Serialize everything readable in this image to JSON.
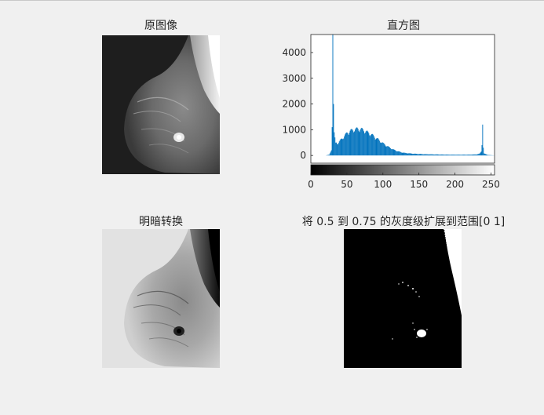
{
  "figure": {
    "subplots": [
      {
        "title": "原图像"
      },
      {
        "title": "直方图"
      },
      {
        "title": "明暗转换"
      },
      {
        "title": "将 0.5 到 0.75 的灰度级扩展到范围[0 1]"
      }
    ]
  },
  "colors": {
    "background": "#f0f0f0",
    "histogram_bar": "#0072bd",
    "axis": "#262626"
  },
  "chart_data": {
    "type": "bar",
    "title": "直方图",
    "xlabel": "",
    "ylabel": "",
    "xlim": [
      0,
      255
    ],
    "ylim": [
      -300,
      4700
    ],
    "xticks": [
      0,
      50,
      100,
      150,
      200,
      250
    ],
    "yticks": [
      0,
      1000,
      2000,
      3000,
      4000
    ],
    "colorbar": "gray",
    "series": [
      {
        "points": [
          [
            0,
            0
          ],
          [
            20,
            0
          ],
          [
            25,
            30
          ],
          [
            28,
            200
          ],
          [
            29,
            1100
          ],
          [
            30,
            4700
          ],
          [
            31,
            2000
          ],
          [
            32,
            900
          ],
          [
            34,
            500
          ],
          [
            36,
            450
          ],
          [
            38,
            500
          ],
          [
            40,
            550
          ],
          [
            45,
            700
          ],
          [
            50,
            850
          ],
          [
            55,
            930
          ],
          [
            60,
            980
          ],
          [
            65,
            1000
          ],
          [
            70,
            980
          ],
          [
            75,
            920
          ],
          [
            80,
            840
          ],
          [
            85,
            760
          ],
          [
            90,
            660
          ],
          [
            95,
            560
          ],
          [
            100,
            450
          ],
          [
            105,
            360
          ],
          [
            110,
            280
          ],
          [
            115,
            210
          ],
          [
            120,
            160
          ],
          [
            125,
            120
          ],
          [
            130,
            95
          ],
          [
            140,
            70
          ],
          [
            150,
            55
          ],
          [
            160,
            45
          ],
          [
            170,
            40
          ],
          [
            180,
            35
          ],
          [
            190,
            30
          ],
          [
            200,
            28
          ],
          [
            210,
            28
          ],
          [
            220,
            30
          ],
          [
            230,
            40
          ],
          [
            234,
            80
          ],
          [
            236,
            150
          ],
          [
            237,
            400
          ],
          [
            238,
            1200
          ],
          [
            239,
            300
          ],
          [
            240,
            80
          ],
          [
            245,
            20
          ],
          [
            255,
            0
          ]
        ]
      }
    ]
  }
}
